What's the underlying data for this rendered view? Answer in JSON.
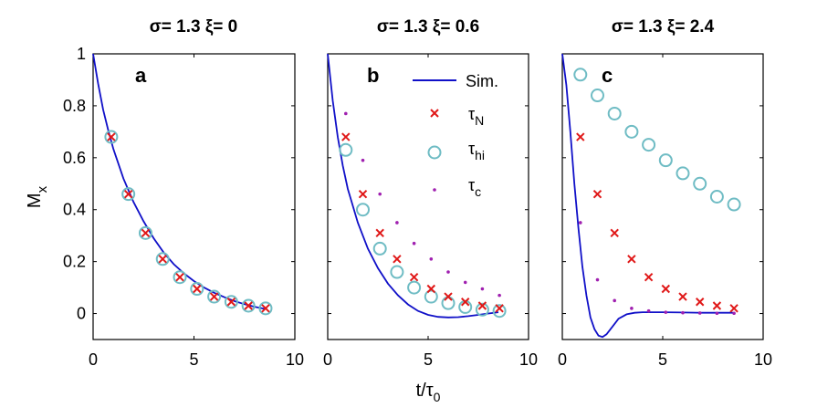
{
  "chart_data": {
    "type": "scatter",
    "ylabel": "M",
    "ylabel_sub": "x",
    "xlabel": "t/τ",
    "xlabel_sub": "0",
    "xlim": [
      0,
      10
    ],
    "ylim": [
      -0.1,
      1.0
    ],
    "xticks": [
      "0",
      "5",
      "10"
    ],
    "yticks": [
      "0",
      "0.2",
      "0.4",
      "0.6",
      "0.8",
      "1"
    ],
    "yticks_values": [
      0,
      0.2,
      0.4,
      0.6,
      0.8,
      1.0
    ],
    "xticks_values": [
      0,
      5,
      10
    ],
    "legend": {
      "placement": "top-right of panel b",
      "sim": {
        "label": "Sim."
      },
      "tauN": {
        "label": "τ",
        "sub": "N"
      },
      "tauhi": {
        "label": "τ",
        "sub": "hi"
      },
      "tauc": {
        "label": "τ",
        "sub": "c"
      }
    },
    "colors": {
      "sim": "#1010c8",
      "tauN": "#e01818",
      "tauhi": "#6fbcc4",
      "tauc": "#a020b0"
    },
    "panels": [
      {
        "title": "σ= 1.3 ξ= 0",
        "label": "a",
        "sim": {
          "x": [
            0,
            0.25,
            0.5,
            0.75,
            1,
            1.5,
            2,
            2.5,
            3,
            3.5,
            4,
            4.5,
            5,
            5.5,
            6,
            6.5,
            7,
            7.5,
            8,
            8.5
          ],
          "y": [
            1.0,
            0.885,
            0.785,
            0.705,
            0.635,
            0.52,
            0.43,
            0.355,
            0.29,
            0.235,
            0.19,
            0.155,
            0.125,
            0.1,
            0.08,
            0.063,
            0.048,
            0.036,
            0.026,
            0.018
          ]
        },
        "tauN": {
          "x": [
            0.9,
            1.75,
            2.6,
            3.45,
            4.3,
            5.15,
            6.0,
            6.85,
            7.7,
            8.55
          ],
          "y": [
            0.68,
            0.46,
            0.31,
            0.21,
            0.14,
            0.095,
            0.065,
            0.045,
            0.03,
            0.02
          ]
        },
        "tauhi": {
          "x": [
            0.9,
            1.75,
            2.6,
            3.45,
            4.3,
            5.15,
            6.0,
            6.85,
            7.7,
            8.55
          ],
          "y": [
            0.68,
            0.46,
            0.31,
            0.21,
            0.14,
            0.095,
            0.065,
            0.045,
            0.03,
            0.02
          ]
        },
        "tauc": {
          "x": [],
          "y": []
        }
      },
      {
        "title": "σ= 1.3 ξ= 0.6",
        "label": "b",
        "sim": {
          "x": [
            0,
            0.25,
            0.5,
            0.75,
            1,
            1.5,
            2,
            2.5,
            3,
            3.5,
            4,
            4.5,
            5,
            5.5,
            6,
            6.5,
            7,
            7.5,
            8,
            8.5
          ],
          "y": [
            1.0,
            0.82,
            0.68,
            0.57,
            0.48,
            0.35,
            0.25,
            0.175,
            0.115,
            0.07,
            0.035,
            0.01,
            -0.005,
            -0.013,
            -0.015,
            -0.014,
            -0.01,
            -0.005,
            0.0,
            0.005
          ]
        },
        "tauN": {
          "x": [
            0.9,
            1.75,
            2.6,
            3.45,
            4.3,
            5.15,
            6.0,
            6.85,
            7.7,
            8.55
          ],
          "y": [
            0.68,
            0.46,
            0.31,
            0.21,
            0.14,
            0.095,
            0.065,
            0.045,
            0.03,
            0.02
          ]
        },
        "tauhi": {
          "x": [
            0.9,
            1.75,
            2.6,
            3.45,
            4.3,
            5.15,
            6.0,
            6.85,
            7.7,
            8.55
          ],
          "y": [
            0.63,
            0.4,
            0.25,
            0.16,
            0.1,
            0.065,
            0.04,
            0.025,
            0.015,
            0.01
          ]
        },
        "tauc": {
          "x": [
            0.9,
            1.75,
            2.6,
            3.45,
            4.3,
            5.15,
            6.0,
            6.85,
            7.7,
            8.55
          ],
          "y": [
            0.77,
            0.59,
            0.46,
            0.35,
            0.27,
            0.21,
            0.16,
            0.12,
            0.095,
            0.07
          ]
        }
      },
      {
        "title": "σ= 1.3 ξ= 2.4",
        "label": "c",
        "sim": {
          "x": [
            0,
            0.2,
            0.4,
            0.6,
            0.8,
            1.0,
            1.2,
            1.4,
            1.6,
            1.8,
            2.0,
            2.2,
            2.5,
            2.8,
            3.2,
            3.6,
            4,
            5,
            6,
            7,
            8,
            8.5
          ],
          "y": [
            1.0,
            0.88,
            0.7,
            0.5,
            0.33,
            0.18,
            0.07,
            -0.015,
            -0.06,
            -0.085,
            -0.09,
            -0.08,
            -0.05,
            -0.02,
            -0.003,
            0.003,
            0.005,
            0.005,
            0.004,
            0.003,
            0.003,
            0.003
          ]
        },
        "tauN": {
          "x": [
            0.9,
            1.75,
            2.6,
            3.45,
            4.3,
            5.15,
            6.0,
            6.85,
            7.7,
            8.55
          ],
          "y": [
            0.68,
            0.46,
            0.31,
            0.21,
            0.14,
            0.095,
            0.065,
            0.045,
            0.03,
            0.02
          ]
        },
        "tauhi": {
          "x": [
            0.9,
            1.75,
            2.6,
            3.45,
            4.3,
            5.15,
            6.0,
            6.85,
            7.7,
            8.55
          ],
          "y": [
            0.92,
            0.84,
            0.77,
            0.7,
            0.65,
            0.59,
            0.54,
            0.5,
            0.45,
            0.42
          ]
        },
        "tauc": {
          "x": [
            0.9,
            1.75,
            2.6,
            3.45,
            4.3,
            5.15,
            6.0,
            6.85,
            7.7,
            8.55
          ],
          "y": [
            0.35,
            0.13,
            0.05,
            0.02,
            0.01,
            0.005,
            0.003,
            0.002,
            0.001,
            0.001
          ]
        }
      }
    ]
  }
}
